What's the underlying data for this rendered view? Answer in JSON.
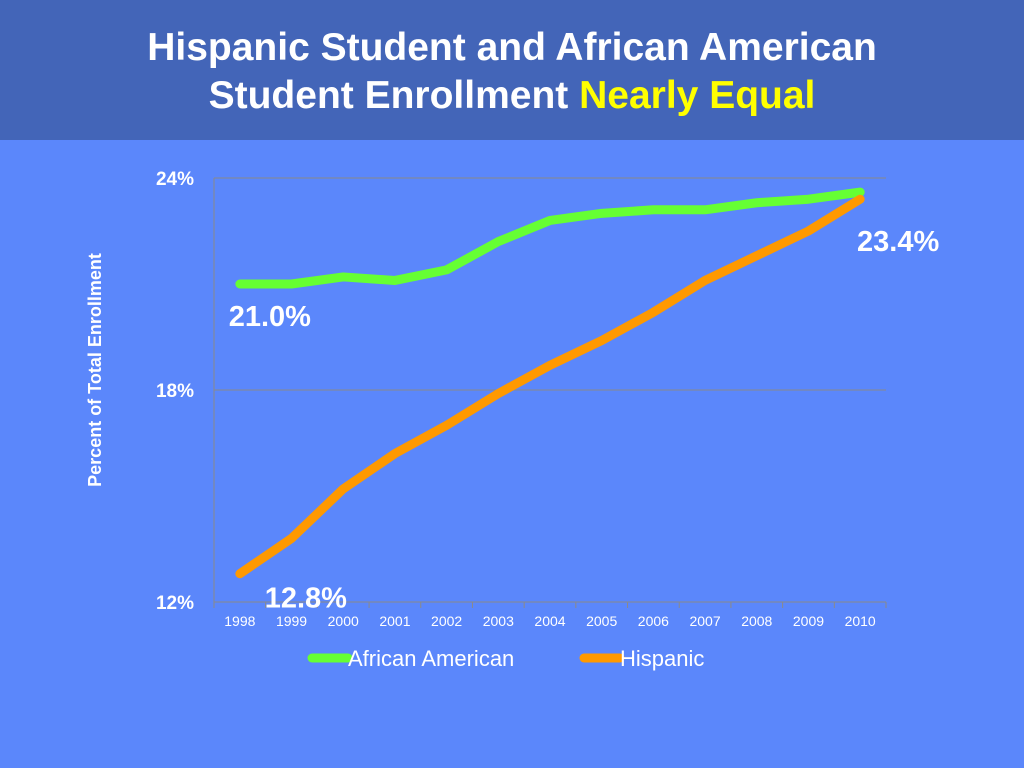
{
  "slide": {
    "title_line1": "Hispanic Student and African American",
    "title_line2_prefix": "Student Enrollment ",
    "title_highlight": "Nearly Equal"
  },
  "colors": {
    "background": "#5b87fb",
    "title_bar": "#4365b8",
    "highlight": "#ffff00",
    "african_american": "#66ff33",
    "hispanic": "#ff9900"
  },
  "chart_data": {
    "type": "line",
    "title": "",
    "xlabel": "",
    "ylabel": "Percent of Total Enrollment",
    "ylim": [
      12,
      24
    ],
    "yticks": [
      "12%",
      "18%",
      "24%"
    ],
    "ytick_values": [
      12,
      18,
      24
    ],
    "grid": true,
    "legend_position": "bottom",
    "categories": [
      "1998",
      "1999",
      "2000",
      "2001",
      "2002",
      "2003",
      "2004",
      "2005",
      "2006",
      "2007",
      "2008",
      "2009",
      "2010"
    ],
    "series": [
      {
        "name": "African American",
        "color": "#66ff33",
        "values": [
          21.0,
          21.0,
          21.2,
          21.1,
          21.4,
          22.2,
          22.8,
          23.0,
          23.1,
          23.1,
          23.3,
          23.4,
          23.6
        ]
      },
      {
        "name": "Hispanic",
        "color": "#ff9900",
        "values": [
          12.8,
          13.8,
          15.2,
          16.2,
          17.0,
          17.9,
          18.7,
          19.4,
          20.2,
          21.1,
          21.8,
          22.5,
          23.4
        ]
      }
    ],
    "annotations": [
      {
        "text": "21.0%",
        "series": 0,
        "index": 0
      },
      {
        "text": "12.8%",
        "series": 1,
        "index": 0
      },
      {
        "text": "23.4%",
        "series": 1,
        "index": 12
      }
    ]
  }
}
